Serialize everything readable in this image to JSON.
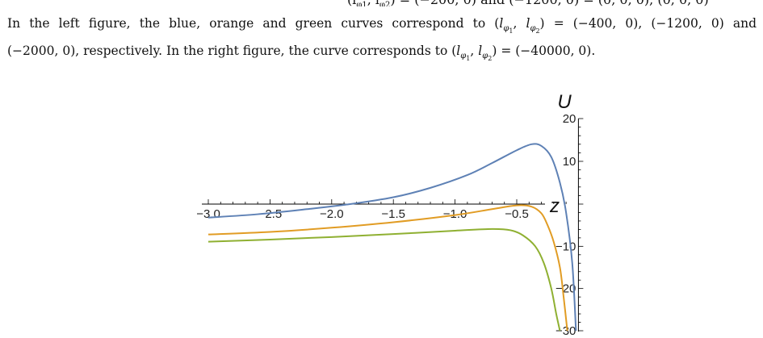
{
  "caption": {
    "line1_prefix": "In the left figure, the blue, orange and green curves correspond to",
    "line1_eq": "(l",
    "line1_values": "= (−400, 0), (−1200, 0) and",
    "line2_start": "(−2000, 0), respectively. In the right figure, the curve corresponds to",
    "line2_values": "= (−40000, 0)."
  },
  "chart_data": {
    "type": "line",
    "title": "",
    "xlabel": "z",
    "ylabel": "U",
    "xlim": [
      -3.0,
      0.1
    ],
    "ylim": [
      -30,
      20
    ],
    "x_ticks": [
      "−3.0",
      "−2.5",
      "−2.0",
      "−1.5",
      "−1.0",
      "−0.5"
    ],
    "y_ticks": [
      "20",
      "10",
      "−10",
      "−20",
      "−30"
    ],
    "grid": false,
    "series": [
      {
        "color": "#5e81b5",
        "points": [
          [
            -3.0,
            -3.2
          ],
          [
            -2.6,
            -2.4
          ],
          [
            -2.2,
            -1.2
          ],
          [
            -1.85,
            0.0
          ],
          [
            -1.5,
            1.6
          ],
          [
            -1.2,
            3.8
          ],
          [
            -0.9,
            6.8
          ],
          [
            -0.7,
            9.6
          ],
          [
            -0.5,
            12.6
          ],
          [
            -0.38,
            14.0
          ],
          [
            -0.3,
            13.6
          ],
          [
            -0.22,
            11.0
          ],
          [
            -0.15,
            5.0
          ],
          [
            -0.1,
            -2.0
          ],
          [
            -0.05,
            -14.0
          ],
          [
            -0.02,
            -30.0
          ]
        ]
      },
      {
        "color": "#e19c24",
        "points": [
          [
            -3.0,
            -7.2
          ],
          [
            -2.5,
            -6.6
          ],
          [
            -2.0,
            -5.6
          ],
          [
            -1.5,
            -4.3
          ],
          [
            -1.0,
            -2.6
          ],
          [
            -0.7,
            -1.2
          ],
          [
            -0.5,
            -0.3
          ],
          [
            -0.38,
            -0.6
          ],
          [
            -0.3,
            -2.2
          ],
          [
            -0.25,
            -5.0
          ],
          [
            -0.2,
            -9.0
          ],
          [
            -0.15,
            -15.0
          ],
          [
            -0.12,
            -22.0
          ],
          [
            -0.09,
            -30.0
          ]
        ]
      },
      {
        "color": "#8fb032",
        "points": [
          [
            -3.0,
            -8.9
          ],
          [
            -2.5,
            -8.4
          ],
          [
            -2.0,
            -7.8
          ],
          [
            -1.5,
            -7.1
          ],
          [
            -1.0,
            -6.3
          ],
          [
            -0.7,
            -5.9
          ],
          [
            -0.55,
            -6.2
          ],
          [
            -0.45,
            -7.4
          ],
          [
            -0.35,
            -10.0
          ],
          [
            -0.28,
            -14.0
          ],
          [
            -0.22,
            -20.0
          ],
          [
            -0.18,
            -26.0
          ],
          [
            -0.15,
            -30.0
          ]
        ]
      }
    ]
  }
}
